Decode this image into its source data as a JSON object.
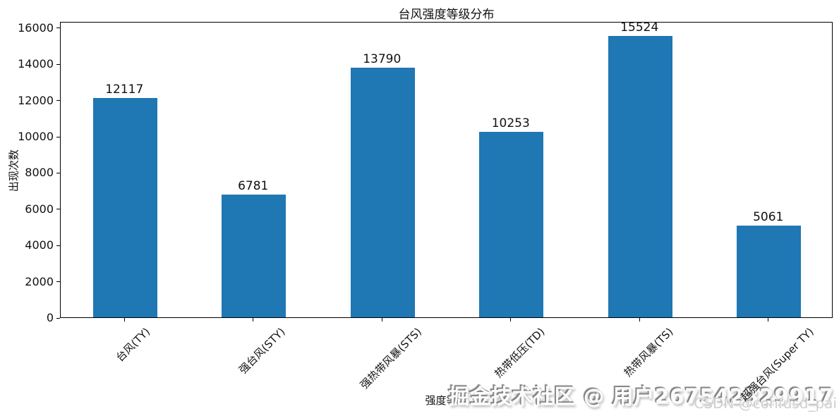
{
  "watermark": {
    "line1": "掘金技术社区 @ 用户267542329917",
    "line2": "CSDN @confusd_pai"
  },
  "chart_data": {
    "type": "bar",
    "title": "台风强度等级分布",
    "categories": [
      "台风(TY)",
      "强台风(STY)",
      "强热带风暴(STS)",
      "热带低压(TD)",
      "热带风暴(TS)",
      "超强台风(Super TY)"
    ],
    "values": [
      12117,
      6781,
      13790,
      10253,
      15524,
      5061
    ],
    "xlabel": "强度等级",
    "ylabel": "出现次数",
    "ylim": [
      0,
      16350
    ],
    "yticks": [
      0,
      2000,
      4000,
      6000,
      8000,
      10000,
      12000,
      14000,
      16000
    ],
    "bar_color": "#1f77b4",
    "bar_width_ratio": 0.5,
    "xtick_rotation_deg": 45,
    "grid": false,
    "legend": null,
    "value_labels_shown": true
  }
}
